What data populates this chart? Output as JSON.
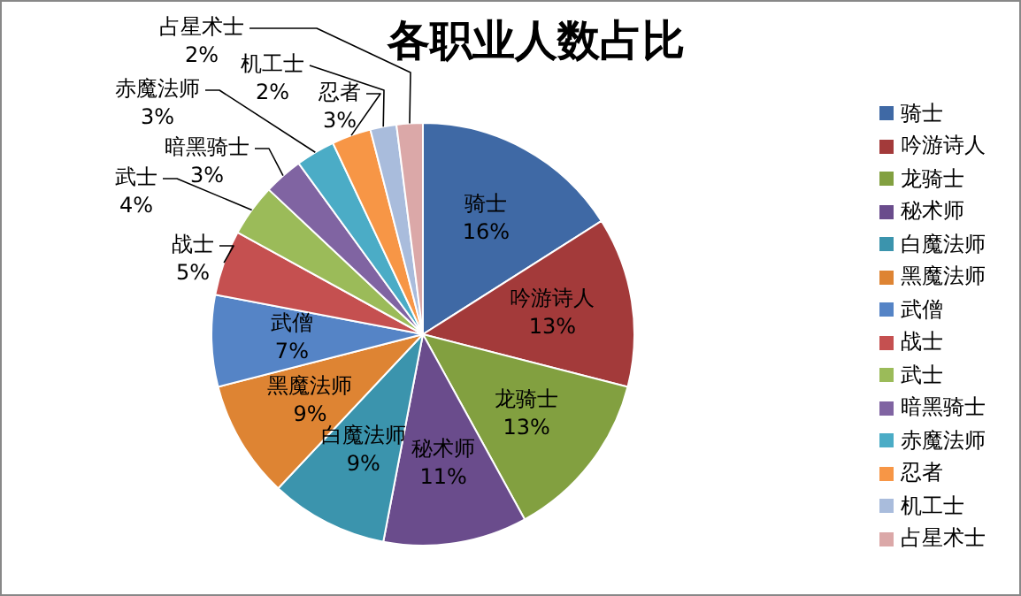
{
  "chart_data": {
    "type": "pie",
    "title": "各职业人数占比",
    "categories": [
      "骑士",
      "吟游诗人",
      "龙骑士",
      "秘术师",
      "白魔法师",
      "黑魔法师",
      "武僧",
      "战士",
      "武士",
      "暗黑骑士",
      "赤魔法师",
      "忍者",
      "机工士",
      "占星术士"
    ],
    "values": [
      16,
      13,
      13,
      11,
      9,
      9,
      7,
      5,
      4,
      3,
      3,
      3,
      2,
      2
    ],
    "value_labels": [
      "16%",
      "13%",
      "13%",
      "11%",
      "9%",
      "9%",
      "7%",
      "5%",
      "4%",
      "3%",
      "3%",
      "3%",
      "2%",
      "2%"
    ],
    "colors": [
      "#3f69a5",
      "#a33a3a",
      "#82a040",
      "#6a4c8c",
      "#3b94ad",
      "#de8433",
      "#5584c6",
      "#c55050",
      "#9bbb59",
      "#8064a2",
      "#4bacc6",
      "#f79646",
      "#a9bcdc",
      "#dba8a8"
    ],
    "legend": "right"
  }
}
